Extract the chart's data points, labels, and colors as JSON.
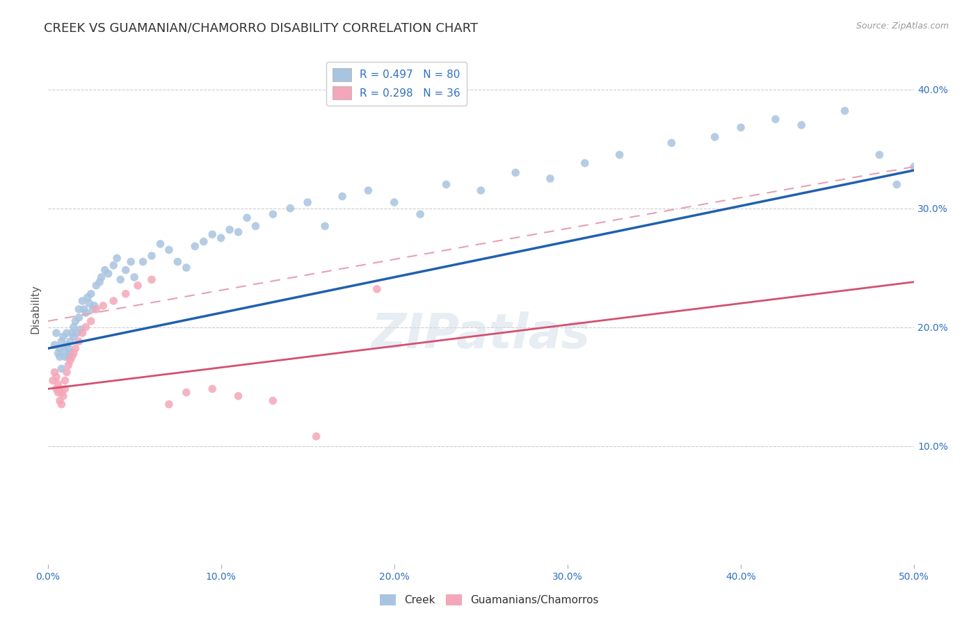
{
  "title": "CREEK VS GUAMANIAN/CHAMORRO DISABILITY CORRELATION CHART",
  "source_text": "Source: ZipAtlas.com",
  "ylabel": "Disability",
  "xlim": [
    0.0,
    0.5
  ],
  "ylim": [
    0.0,
    0.43
  ],
  "xticks": [
    0.0,
    0.1,
    0.2,
    0.3,
    0.4,
    0.5
  ],
  "yticks": [
    0.1,
    0.2,
    0.3,
    0.4
  ],
  "creek_R": 0.497,
  "creek_N": 80,
  "guam_R": 0.298,
  "guam_N": 36,
  "legend_labels": [
    "Creek",
    "Guamanians/Chamorros"
  ],
  "creek_color": "#a8c4e0",
  "guam_color": "#f4a7b9",
  "creek_line_color": "#2060b0",
  "guam_line_color": "#d45070",
  "guam_dash_color": "#e8a0b0",
  "title_fontsize": 13,
  "axis_label_fontsize": 11,
  "tick_fontsize": 10,
  "legend_fontsize": 11,
  "background_color": "#ffffff",
  "grid_color": "#cccccc",
  "marker_size": 70,
  "creek_x": [
    0.004,
    0.005,
    0.006,
    0.007,
    0.007,
    0.008,
    0.008,
    0.009,
    0.01,
    0.01,
    0.011,
    0.011,
    0.012,
    0.012,
    0.013,
    0.013,
    0.014,
    0.015,
    0.015,
    0.016,
    0.017,
    0.018,
    0.018,
    0.019,
    0.02,
    0.021,
    0.022,
    0.023,
    0.024,
    0.025,
    0.026,
    0.027,
    0.028,
    0.03,
    0.031,
    0.033,
    0.035,
    0.038,
    0.04,
    0.042,
    0.045,
    0.048,
    0.05,
    0.055,
    0.06,
    0.065,
    0.07,
    0.075,
    0.08,
    0.085,
    0.09,
    0.095,
    0.1,
    0.105,
    0.11,
    0.115,
    0.12,
    0.13,
    0.14,
    0.15,
    0.16,
    0.17,
    0.185,
    0.2,
    0.215,
    0.23,
    0.25,
    0.27,
    0.29,
    0.31,
    0.33,
    0.36,
    0.385,
    0.4,
    0.42,
    0.435,
    0.46,
    0.48,
    0.49,
    0.5
  ],
  "creek_y": [
    0.185,
    0.195,
    0.178,
    0.182,
    0.175,
    0.188,
    0.165,
    0.192,
    0.175,
    0.18,
    0.185,
    0.195,
    0.175,
    0.182,
    0.178,
    0.188,
    0.195,
    0.2,
    0.192,
    0.205,
    0.195,
    0.215,
    0.208,
    0.198,
    0.222,
    0.215,
    0.212,
    0.225,
    0.22,
    0.228,
    0.215,
    0.218,
    0.235,
    0.238,
    0.242,
    0.248,
    0.245,
    0.252,
    0.258,
    0.24,
    0.248,
    0.255,
    0.242,
    0.255,
    0.26,
    0.27,
    0.265,
    0.255,
    0.25,
    0.268,
    0.272,
    0.278,
    0.275,
    0.282,
    0.28,
    0.292,
    0.285,
    0.295,
    0.3,
    0.305,
    0.285,
    0.31,
    0.315,
    0.305,
    0.295,
    0.32,
    0.315,
    0.33,
    0.325,
    0.338,
    0.345,
    0.355,
    0.36,
    0.368,
    0.375,
    0.37,
    0.382,
    0.345,
    0.32,
    0.335
  ],
  "guam_x": [
    0.003,
    0.004,
    0.005,
    0.005,
    0.006,
    0.006,
    0.007,
    0.007,
    0.008,
    0.008,
    0.009,
    0.01,
    0.01,
    0.011,
    0.012,
    0.013,
    0.014,
    0.015,
    0.016,
    0.018,
    0.02,
    0.022,
    0.025,
    0.028,
    0.032,
    0.038,
    0.045,
    0.052,
    0.06,
    0.07,
    0.08,
    0.095,
    0.11,
    0.13,
    0.155,
    0.19
  ],
  "guam_y": [
    0.155,
    0.162,
    0.148,
    0.158,
    0.145,
    0.152,
    0.138,
    0.148,
    0.135,
    0.145,
    0.142,
    0.148,
    0.155,
    0.162,
    0.168,
    0.172,
    0.175,
    0.178,
    0.182,
    0.188,
    0.195,
    0.2,
    0.205,
    0.215,
    0.218,
    0.222,
    0.228,
    0.235,
    0.24,
    0.135,
    0.145,
    0.148,
    0.142,
    0.138,
    0.108,
    0.232
  ],
  "creek_line": [
    0.182,
    0.332
  ],
  "guam_line": [
    0.148,
    0.238
  ],
  "guam_dashed_line": [
    0.205,
    0.335
  ]
}
